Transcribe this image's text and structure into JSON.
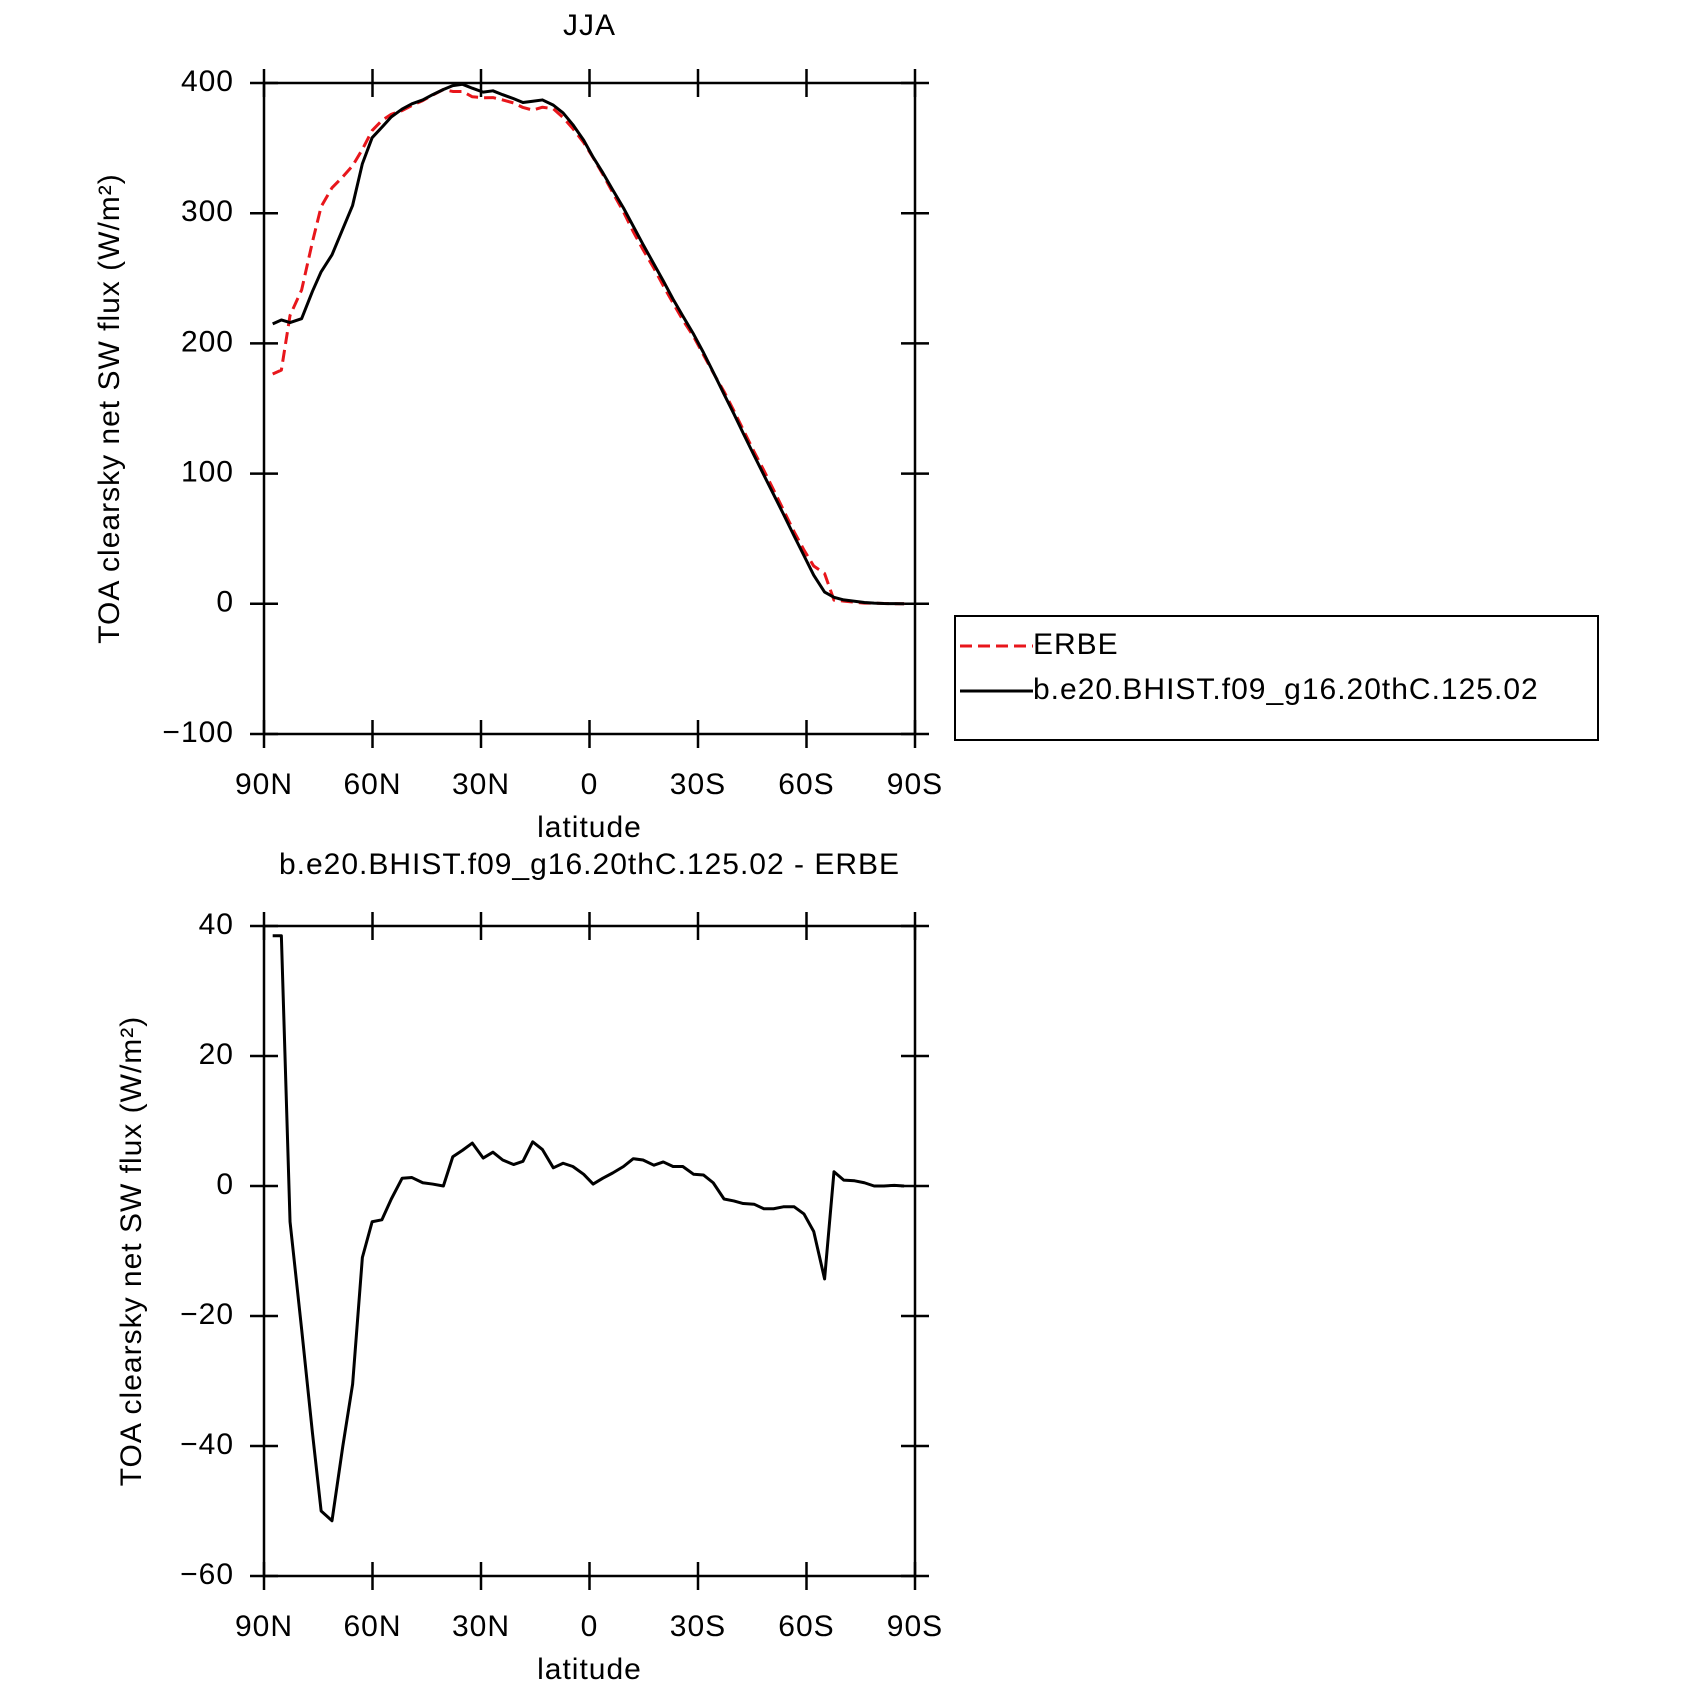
{
  "chart_data": [
    {
      "type": "line",
      "title": "JJA",
      "xlabel": "latitude",
      "ylabel": "TOA clearsky net SW flux (W/m²)",
      "xlim": [
        90,
        -90
      ],
      "xticks": [
        {
          "value": 90,
          "label": "90N"
        },
        {
          "value": 60,
          "label": "60N"
        },
        {
          "value": 30,
          "label": "30N"
        },
        0,
        {
          "value": -30,
          "label": "30S"
        },
        {
          "value": -60,
          "label": "60S"
        },
        {
          "value": -90,
          "label": "90S"
        }
      ],
      "ylim": [
        -100,
        400
      ],
      "yticks": [
        {
          "value": -100,
          "label": "−100"
        },
        0,
        100,
        200,
        300,
        400
      ],
      "legend": "outside-right",
      "x": [
        87.6,
        85.2,
        82.8,
        79.6,
        76.6,
        74.2,
        71.2,
        68.2,
        65.5,
        62.8,
        60.1,
        57.4,
        54.8,
        51.8,
        49.1,
        46.1,
        43.4,
        40.4,
        37.8,
        35.1,
        32.4,
        29.4,
        26.7,
        24,
        21,
        18.4,
        15.7,
        13,
        10,
        7.3,
        4.6,
        1.6,
        -1,
        -3.7,
        -6.4,
        -9.4,
        -12.1,
        -14.8,
        -17.8,
        -20.4,
        -23.1,
        -25.8,
        -28.8,
        -31.5,
        -34.2,
        -37.2,
        -39.9,
        -42.5,
        -45.5,
        -48.2,
        -50.9,
        -53.6,
        -56.6,
        -59.3,
        -62,
        -65,
        -67.6,
        -70.3,
        -73.3,
        -76,
        -78.7,
        -81.4,
        -84.3,
        -87
      ],
      "series": [
        {
          "name": "ERBE",
          "color": "#e8161b",
          "dashed": true,
          "values": [
            176.5,
            179.5,
            221.5,
            241,
            278,
            305,
            319.5,
            328,
            336.5,
            349,
            363.5,
            371.2,
            376,
            378.8,
            382.7,
            386.5,
            390.7,
            395,
            393.5,
            393.5,
            389.4,
            388.7,
            388.8,
            387,
            384.7,
            381.2,
            379.2,
            381.4,
            380.2,
            373.5,
            365,
            354.2,
            342.7,
            329.8,
            316,
            301,
            285.8,
            272,
            257.8,
            244.3,
            231,
            218,
            205.2,
            191.3,
            177.5,
            163,
            148.3,
            133.7,
            116.8,
            102.5,
            87.5,
            72.2,
            55.2,
            41.3,
            29,
            23.3,
            2.8,
            2.1,
            1.2,
            0.5,
            0.5,
            0.2,
            0,
            0
          ]
        },
        {
          "name": "b.e20.BHIST.f09_g16.20thC.125.02",
          "color": "#000000",
          "dashed": false,
          "values": [
            215,
            218,
            216,
            219,
            240,
            255,
            268,
            288,
            306,
            338,
            358,
            366,
            374,
            380,
            384,
            387,
            391,
            395,
            398,
            399,
            396,
            393,
            394,
            391,
            388,
            385,
            386,
            387,
            383,
            377,
            368,
            356,
            343,
            331,
            318,
            304,
            290,
            276,
            261,
            248,
            234,
            221,
            207,
            193,
            178,
            161,
            146,
            131,
            114,
            99,
            84,
            69,
            52,
            37,
            22,
            9,
            5,
            3,
            2,
            1,
            0.5,
            0.2,
            0.1,
            0
          ]
        }
      ]
    },
    {
      "type": "line",
      "title": "b.e20.BHIST.f09_g16.20thC.125.02 - ERBE",
      "xlabel": "latitude",
      "ylabel": "TOA clearsky net SW flux (W/m²)",
      "xlim": [
        90,
        -90
      ],
      "xticks": [
        {
          "value": 90,
          "label": "90N"
        },
        {
          "value": 60,
          "label": "60N"
        },
        {
          "value": 30,
          "label": "30N"
        },
        0,
        {
          "value": -30,
          "label": "30S"
        },
        {
          "value": -60,
          "label": "60S"
        },
        {
          "value": -90,
          "label": "90S"
        }
      ],
      "ylim": [
        -60,
        40
      ],
      "yticks": [
        {
          "value": -60,
          "label": "−60"
        },
        {
          "value": -40,
          "label": "−40"
        },
        {
          "value": -20,
          "label": "−20"
        },
        0,
        20,
        40
      ],
      "x": [
        87.6,
        85.2,
        82.8,
        79.6,
        76.6,
        74.2,
        71.2,
        68.2,
        65.5,
        62.8,
        60.1,
        57.4,
        54.8,
        51.8,
        49.1,
        46.1,
        43.4,
        40.4,
        37.8,
        35.1,
        32.4,
        29.4,
        26.7,
        24,
        21,
        18.4,
        15.7,
        13,
        10,
        7.3,
        4.6,
        1.6,
        -1,
        -3.7,
        -6.4,
        -9.4,
        -12.1,
        -14.8,
        -17.8,
        -20.4,
        -23.1,
        -25.8,
        -28.8,
        -31.5,
        -34.2,
        -37.2,
        -39.9,
        -42.5,
        -45.5,
        -48.2,
        -50.9,
        -53.6,
        -56.6,
        -59.3,
        -62,
        -65,
        -67.6,
        -70.3,
        -73.3,
        -76,
        -78.7,
        -81.4,
        -84.3,
        -87
      ],
      "series": [
        {
          "color": "#000000",
          "dashed": false,
          "values": [
            38.5,
            38.5,
            -5.5,
            -22,
            -38,
            -50,
            -51.5,
            -40,
            -30.5,
            -11,
            -5.5,
            -5.2,
            -2,
            1.2,
            1.3,
            0.5,
            0.3,
            0,
            4.5,
            5.5,
            6.6,
            4.3,
            5.2,
            4,
            3.3,
            3.8,
            6.8,
            5.6,
            2.8,
            3.5,
            3,
            1.8,
            0.3,
            1.2,
            2,
            3,
            4.2,
            4,
            3.2,
            3.7,
            3,
            3,
            1.8,
            1.7,
            0.5,
            -2,
            -2.3,
            -2.7,
            -2.8,
            -3.5,
            -3.5,
            -3.2,
            -3.2,
            -4.3,
            -7,
            -14.3,
            2.2,
            0.9,
            0.8,
            0.5,
            0,
            0,
            0.1,
            0
          ]
        }
      ]
    }
  ]
}
